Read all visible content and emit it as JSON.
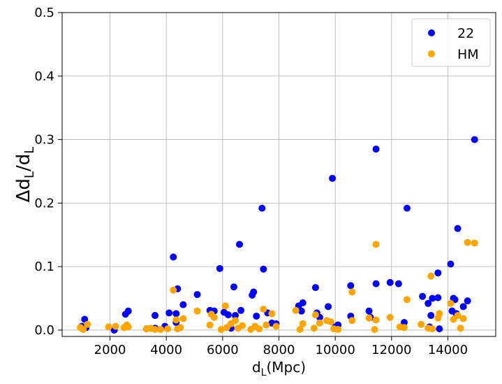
{
  "chart_data": {
    "type": "scatter",
    "xlabel": "d_L(Mpc)",
    "ylabel": "Δd_L/d_L",
    "xlim": [
      300,
      15700
    ],
    "ylim": [
      -0.01,
      0.5
    ],
    "xticks": [
      2000,
      4000,
      6000,
      8000,
      10000,
      12000,
      14000
    ],
    "xtick_labels": [
      "2000",
      "4000",
      "6000",
      "8000",
      "10000",
      "12000",
      "14000"
    ],
    "yticks": [
      0.0,
      0.1,
      0.2,
      0.3,
      0.4,
      0.5
    ],
    "ytick_labels": [
      "0.0",
      "0.1",
      "0.2",
      "0.3",
      "0.4",
      "0.5"
    ],
    "grid": true,
    "legend_position": "top-right",
    "series": [
      {
        "name": "22",
        "color": "#0000ff",
        "points": [
          [
            1000,
            0.006
          ],
          [
            1100,
            0.017
          ],
          [
            1150,
            0.004
          ],
          [
            2150,
            0.0
          ],
          [
            2550,
            0.025
          ],
          [
            2650,
            0.03
          ],
          [
            3300,
            0.002
          ],
          [
            3600,
            0.023
          ],
          [
            3600,
            0.003
          ],
          [
            3950,
            0.006
          ],
          [
            4100,
            0.027
          ],
          [
            4250,
            0.115
          ],
          [
            4350,
            0.026
          ],
          [
            4400,
            0.065
          ],
          [
            4350,
            0.012
          ],
          [
            4600,
            0.04
          ],
          [
            5100,
            0.056
          ],
          [
            5550,
            0.031
          ],
          [
            5700,
            0.03
          ],
          [
            5900,
            0.097
          ],
          [
            6050,
            0.028
          ],
          [
            6200,
            0.024
          ],
          [
            6300,
            0.003
          ],
          [
            6400,
            0.068
          ],
          [
            6450,
            0.023
          ],
          [
            6600,
            0.135
          ],
          [
            6650,
            0.031
          ],
          [
            7050,
            0.055
          ],
          [
            7100,
            0.06
          ],
          [
            7200,
            0.022
          ],
          [
            7400,
            0.192
          ],
          [
            7450,
            0.096
          ],
          [
            7600,
            0.027
          ],
          [
            7750,
            0.011
          ],
          [
            7900,
            0.01
          ],
          [
            8700,
            0.038
          ],
          [
            8800,
            0.03
          ],
          [
            8850,
            0.043
          ],
          [
            9300,
            0.067
          ],
          [
            9350,
            0.027
          ],
          [
            9450,
            0.02
          ],
          [
            9750,
            0.037
          ],
          [
            9900,
            0.239
          ],
          [
            10000,
            0.005
          ],
          [
            10100,
            0.008
          ],
          [
            10550,
            0.022
          ],
          [
            10550,
            0.07
          ],
          [
            11200,
            0.03
          ],
          [
            11250,
            0.02
          ],
          [
            11450,
            0.285
          ],
          [
            11450,
            0.073
          ],
          [
            11950,
            0.075
          ],
          [
            12250,
            0.073
          ],
          [
            12450,
            0.012
          ],
          [
            12550,
            0.192
          ],
          [
            13100,
            0.053
          ],
          [
            13300,
            0.042
          ],
          [
            13350,
            0.005
          ],
          [
            13400,
            0.023
          ],
          [
            13450,
            0.05
          ],
          [
            13650,
            0.09
          ],
          [
            13650,
            0.051
          ],
          [
            13700,
            0.002
          ],
          [
            14100,
            0.104
          ],
          [
            14150,
            0.03
          ],
          [
            14200,
            0.05
          ],
          [
            14250,
            0.048
          ],
          [
            14300,
            0.026
          ],
          [
            14350,
            0.16
          ],
          [
            14550,
            0.037
          ],
          [
            14700,
            0.046
          ],
          [
            14950,
            0.3
          ]
        ]
      },
      {
        "name": "HM",
        "color": "#ffa500",
        "points": [
          [
            950,
            0.004
          ],
          [
            1050,
            0.001
          ],
          [
            1200,
            0.009
          ],
          [
            1950,
            0.005
          ],
          [
            2200,
            0.006
          ],
          [
            2500,
            0.004
          ],
          [
            2600,
            0.008
          ],
          [
            2650,
            0.005
          ],
          [
            3300,
            0.002
          ],
          [
            3450,
            0.003
          ],
          [
            3600,
            0.001
          ],
          [
            3800,
            0.001
          ],
          [
            4050,
            0.002
          ],
          [
            4250,
            0.063
          ],
          [
            4350,
            0.016
          ],
          [
            4400,
            0.002
          ],
          [
            4500,
            0.004
          ],
          [
            4600,
            0.018
          ],
          [
            5100,
            0.03
          ],
          [
            5550,
            0.008
          ],
          [
            5600,
            0.025
          ],
          [
            5700,
            0.02
          ],
          [
            5950,
            0.001
          ],
          [
            6100,
            0.038
          ],
          [
            6150,
            0.004
          ],
          [
            6300,
            0.01
          ],
          [
            6450,
            0.015
          ],
          [
            6550,
            0.003
          ],
          [
            6700,
            0.007
          ],
          [
            7000,
            0.001
          ],
          [
            7150,
            0.006
          ],
          [
            7300,
            0.002
          ],
          [
            7450,
            0.033
          ],
          [
            7550,
            0.008
          ],
          [
            7750,
            0.026
          ],
          [
            7900,
            0.006
          ],
          [
            8600,
            0.031
          ],
          [
            8750,
            0.001
          ],
          [
            8850,
            0.01
          ],
          [
            9250,
            0.003
          ],
          [
            9300,
            0.024
          ],
          [
            9450,
            0.011
          ],
          [
            9700,
            0.015
          ],
          [
            9850,
            0.013
          ],
          [
            9950,
            0.002
          ],
          [
            10100,
            0.001
          ],
          [
            10600,
            0.015
          ],
          [
            10600,
            0.06
          ],
          [
            11200,
            0.019
          ],
          [
            11400,
            0.001
          ],
          [
            11450,
            0.135
          ],
          [
            11450,
            0.016
          ],
          [
            11950,
            0.02
          ],
          [
            12300,
            0.005
          ],
          [
            12450,
            0.004
          ],
          [
            12550,
            0.048
          ],
          [
            13050,
            0.009
          ],
          [
            13300,
            0.003
          ],
          [
            13400,
            0.085
          ],
          [
            13450,
            0.002
          ],
          [
            13650,
            0.019
          ],
          [
            13700,
            0.026
          ],
          [
            14100,
            0.042
          ],
          [
            14200,
            0.017
          ],
          [
            14350,
            0.023
          ],
          [
            14450,
            0.003
          ],
          [
            14550,
            0.018
          ],
          [
            14700,
            0.138
          ],
          [
            14950,
            0.137
          ]
        ]
      }
    ]
  }
}
